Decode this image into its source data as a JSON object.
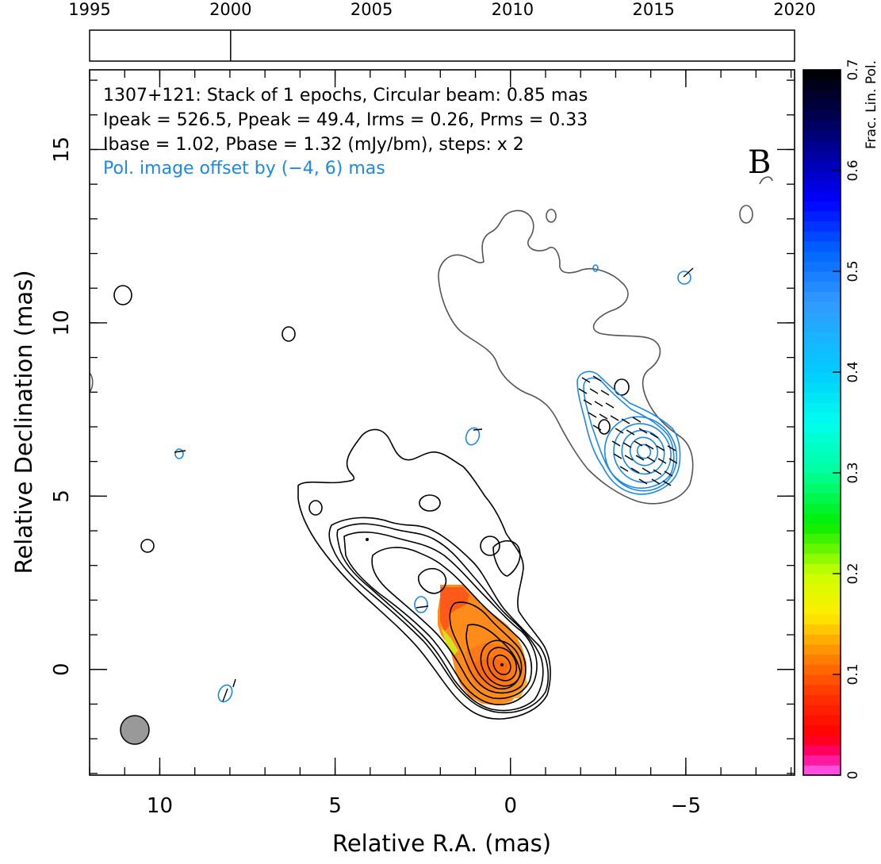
{
  "chart_data": {
    "type": "contour map",
    "source": "1307+121",
    "panel_letter": "B",
    "xlabel": "Relative R.A. (mas)",
    "ylabel": "Relative Declination (mas)",
    "x_ticks": [
      10,
      5,
      0,
      -5
    ],
    "x_tick_labels": [
      "10",
      "5",
      "0",
      "−5"
    ],
    "y_ticks": [
      0,
      5,
      10,
      15
    ],
    "y_tick_labels": [
      "0",
      "5",
      "10",
      "15"
    ],
    "xlim": [
      12.0,
      -8.1
    ],
    "ylim": [
      -3.05,
      17.3
    ],
    "annotations": [
      "1307+121: Stack of 1 epochs, Circular beam: 0.85 mas",
      "Ipeak = 526.5, Ppeak = 49.4, Irms = 0.26, Prms = 0.33",
      "Ibase = 1.02, Pbase = 1.32 (mJy/bm), steps: x 2",
      "Pol. image offset by (−4, 6) mas"
    ],
    "pol_offset_mas": [
      -4,
      6
    ],
    "beam_fwhm_mas": 0.85,
    "intensity_peak_mJy_per_beam": 526.5,
    "polarization_peak_mJy_per_beam": 49.4,
    "intensity_rms_mJy_per_beam": 0.26,
    "polarization_rms_mJy_per_beam": 0.33,
    "intensity_base_contour_mJy_per_beam": 1.02,
    "polarization_base_contour_mJy_per_beam": 1.32,
    "contour_step_factor": 2,
    "timeline": {
      "range": [
        1995,
        2020
      ],
      "tick_labels": [
        "1995",
        "2000",
        "2005",
        "2010",
        "2015",
        "2020"
      ],
      "epochs": [
        2000.0
      ]
    },
    "colorbar": {
      "label": "Frac. Lin. Pol.",
      "range": [
        0,
        0.7
      ],
      "ticks": [
        0,
        0.1,
        0.2,
        0.3,
        0.4,
        0.5,
        0.6,
        0.7
      ],
      "tick_labels": [
        "0",
        "0.1",
        "0.2",
        "0.3",
        "0.4",
        "0.5",
        "0.6",
        "0.7"
      ],
      "stops": [
        {
          "v": 0.0,
          "color": "#ff66ff"
        },
        {
          "v": 0.02,
          "color": "#ff0080"
        },
        {
          "v": 0.04,
          "color": "#ff0000"
        },
        {
          "v": 0.08,
          "color": "#ff3300"
        },
        {
          "v": 0.12,
          "color": "#ff8800"
        },
        {
          "v": 0.16,
          "color": "#ffee00"
        },
        {
          "v": 0.2,
          "color": "#ccff00"
        },
        {
          "v": 0.25,
          "color": "#00ee00"
        },
        {
          "v": 0.3,
          "color": "#00ff99"
        },
        {
          "v": 0.35,
          "color": "#00ffee"
        },
        {
          "v": 0.4,
          "color": "#00ccff"
        },
        {
          "v": 0.47,
          "color": "#3399ff"
        },
        {
          "v": 0.52,
          "color": "#0066ff"
        },
        {
          "v": 0.57,
          "color": "#0000ff"
        },
        {
          "v": 0.62,
          "color": "#000099"
        },
        {
          "v": 0.66,
          "color": "#000044"
        },
        {
          "v": 0.7,
          "color": "#000000"
        }
      ]
    },
    "fractional_pol_region": {
      "center_mas": [
        1.2,
        0.9
      ],
      "typical_value": 0.1
    },
    "colors": {
      "intensity_contours": "#000000",
      "pol_contours": "#1e88e5",
      "annotation_pol": "#1e88e5",
      "lowest_contour": "#555555",
      "beam_fill": "#999999"
    }
  }
}
